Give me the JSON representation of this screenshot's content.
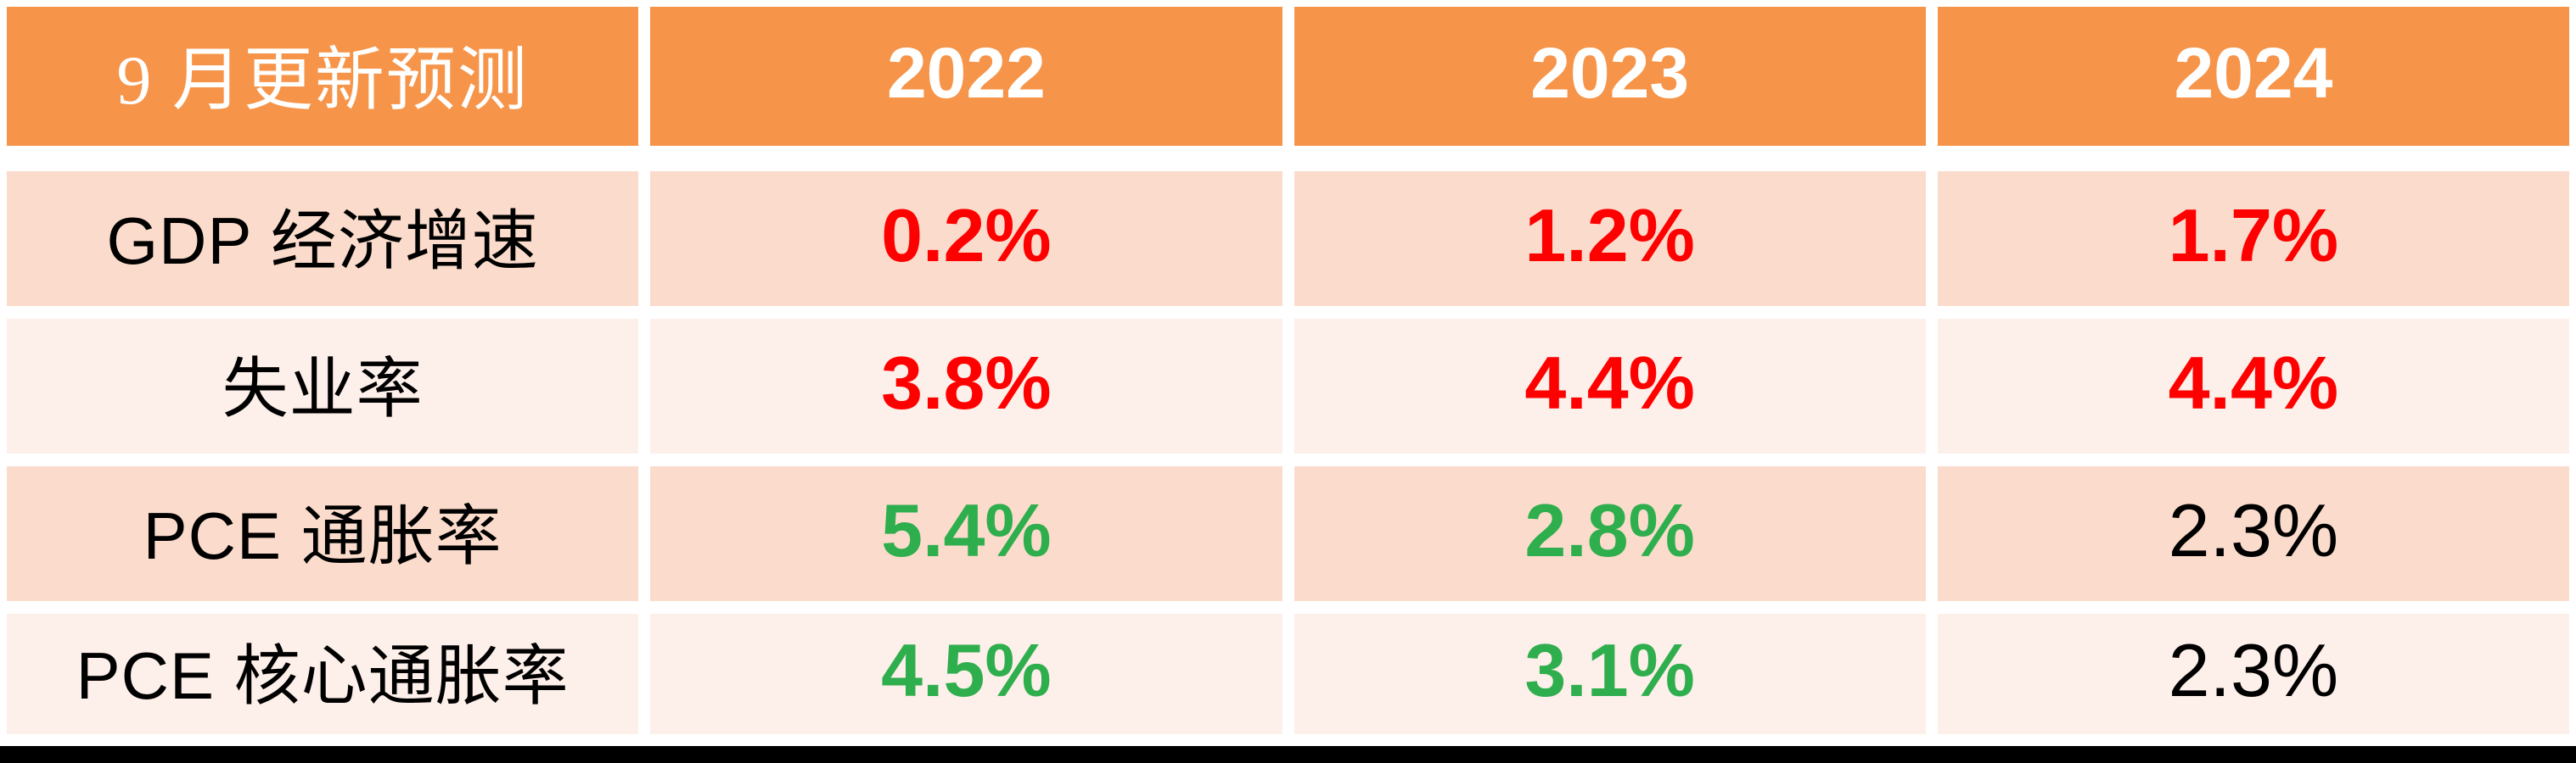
{
  "theme": {
    "header_bg": "#F6954A",
    "header_text": "#FFFFFF",
    "band_dark": "#FBDCCC",
    "band_light": "#FDEFE9",
    "gap_color": "#FFFFFF",
    "bottom_bar": "#000000",
    "red": "#FF0000",
    "green": "#2FAE4E",
    "black_value": "#000000"
  },
  "chart_data": {
    "type": "table",
    "title": "9 月更新预测",
    "columns": [
      "9 月更新预测",
      "2022",
      "2023",
      "2024"
    ],
    "header": {
      "label": "9 月更新预测",
      "years": [
        "2022",
        "2023",
        "2024"
      ]
    },
    "rows": [
      {
        "label": "GDP 经济增速",
        "values": [
          {
            "text": "0.2%",
            "color": "#FF0000",
            "weight": "bold"
          },
          {
            "text": "1.2%",
            "color": "#FF0000",
            "weight": "bold"
          },
          {
            "text": "1.7%",
            "color": "#FF0000",
            "weight": "bold"
          }
        ]
      },
      {
        "label": "失业率",
        "values": [
          {
            "text": "3.8%",
            "color": "#FF0000",
            "weight": "bold"
          },
          {
            "text": "4.4%",
            "color": "#FF0000",
            "weight": "bold"
          },
          {
            "text": "4.4%",
            "color": "#FF0000",
            "weight": "bold"
          }
        ]
      },
      {
        "label": "PCE 通胀率",
        "values": [
          {
            "text": "5.4%",
            "color": "#2FAE4E",
            "weight": "bold"
          },
          {
            "text": "2.8%",
            "color": "#2FAE4E",
            "weight": "bold"
          },
          {
            "text": "2.3%",
            "color": "#000000",
            "weight": "normal"
          }
        ]
      },
      {
        "label": "PCE 核心通胀率",
        "values": [
          {
            "text": "4.5%",
            "color": "#2FAE4E",
            "weight": "bold"
          },
          {
            "text": "3.1%",
            "color": "#2FAE4E",
            "weight": "bold"
          },
          {
            "text": "2.3%",
            "color": "#000000",
            "weight": "normal"
          }
        ]
      }
    ]
  }
}
